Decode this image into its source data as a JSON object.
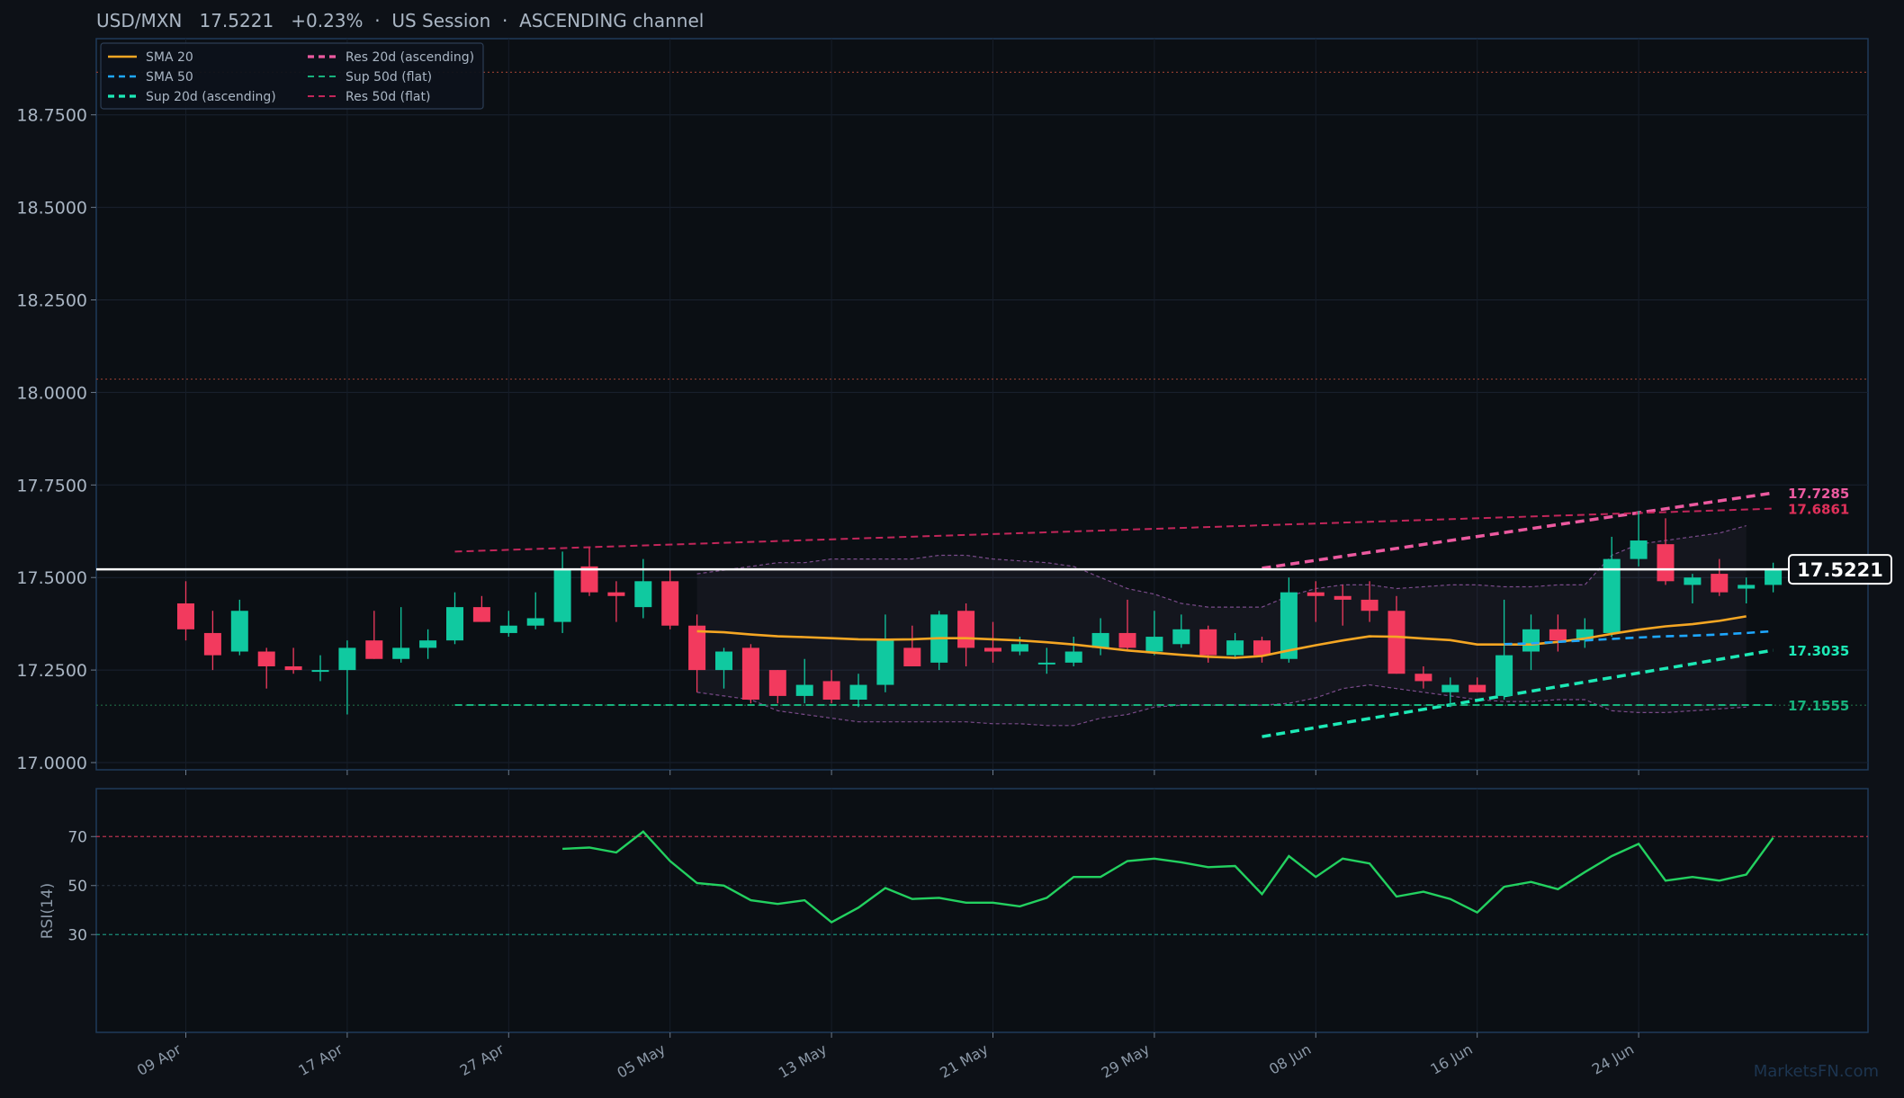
{
  "header": {
    "title": "USD/MXN   17.5221   +0.23%  ·  US Session  ·  ASCENDING channel"
  },
  "watermark": "MarketsFN.com",
  "colors": {
    "background": "#0d1117",
    "panel": "#0b0f14",
    "frame": "#1f3a5a",
    "up": "#10c9a0",
    "down": "#f23a5e",
    "sma20": "#f5a623",
    "sma50": "#1ea7ff",
    "sup20": "#1de9b6",
    "res20": "#ec5aa0",
    "sup50": "#17b27d",
    "res50": "#c2265a",
    "rsi": "#23d160",
    "band": "#7a4b8a",
    "last_price": "#ffffff"
  },
  "chart_data": [
    {
      "type": "candlestick",
      "title": "USD/MXN   17.5221   +0.23%  ·  US Session  ·  ASCENDING channel",
      "ylim": [
        16.98,
        18.89
      ],
      "y_ticks": [
        "17.0000",
        "17.2500",
        "17.5000",
        "17.7500",
        "18.0000",
        "18.2500",
        "18.5000",
        "18.7500"
      ],
      "y_tick_values": [
        17.0,
        17.25,
        17.5,
        17.75,
        18.0,
        18.25,
        18.5,
        18.75
      ],
      "x_ticks": [
        "09 Apr",
        "17 Apr",
        "27 Apr",
        "05 May",
        "13 May",
        "21 May",
        "29 May",
        "08 Jun",
        "16 Jun",
        "24 Jun"
      ],
      "x_tick_index": [
        0,
        6,
        12,
        18,
        24,
        30,
        36,
        42,
        48,
        54
      ],
      "candles": [
        {
          "o": 17.43,
          "h": 17.49,
          "l": 17.33,
          "c": 17.36
        },
        {
          "o": 17.35,
          "h": 17.41,
          "l": 17.25,
          "c": 17.29
        },
        {
          "o": 17.3,
          "h": 17.44,
          "l": 17.29,
          "c": 17.41
        },
        {
          "o": 17.3,
          "h": 17.31,
          "l": 17.2,
          "c": 17.26
        },
        {
          "o": 17.26,
          "h": 17.31,
          "l": 17.24,
          "c": 17.25
        },
        {
          "o": 17.25,
          "h": 17.29,
          "l": 17.22,
          "c": 17.25
        },
        {
          "o": 17.25,
          "h": 17.33,
          "l": 17.13,
          "c": 17.31
        },
        {
          "o": 17.33,
          "h": 17.41,
          "l": 17.28,
          "c": 17.28
        },
        {
          "o": 17.28,
          "h": 17.42,
          "l": 17.27,
          "c": 17.31
        },
        {
          "o": 17.31,
          "h": 17.36,
          "l": 17.28,
          "c": 17.33
        },
        {
          "o": 17.33,
          "h": 17.46,
          "l": 17.32,
          "c": 17.42
        },
        {
          "o": 17.42,
          "h": 17.45,
          "l": 17.38,
          "c": 17.38
        },
        {
          "o": 17.35,
          "h": 17.41,
          "l": 17.34,
          "c": 17.37
        },
        {
          "o": 17.37,
          "h": 17.46,
          "l": 17.36,
          "c": 17.39
        },
        {
          "o": 17.38,
          "h": 17.57,
          "l": 17.35,
          "c": 17.52
        },
        {
          "o": 17.53,
          "h": 17.58,
          "l": 17.45,
          "c": 17.46
        },
        {
          "o": 17.46,
          "h": 17.49,
          "l": 17.38,
          "c": 17.45
        },
        {
          "o": 17.42,
          "h": 17.55,
          "l": 17.39,
          "c": 17.49
        },
        {
          "o": 17.49,
          "h": 17.52,
          "l": 17.36,
          "c": 17.37
        },
        {
          "o": 17.37,
          "h": 17.4,
          "l": 17.19,
          "c": 17.25
        },
        {
          "o": 17.25,
          "h": 17.31,
          "l": 17.2,
          "c": 17.3
        },
        {
          "o": 17.31,
          "h": 17.32,
          "l": 17.16,
          "c": 17.17
        },
        {
          "o": 17.25,
          "h": 17.25,
          "l": 17.16,
          "c": 17.18
        },
        {
          "o": 17.18,
          "h": 17.28,
          "l": 17.16,
          "c": 17.21
        },
        {
          "o": 17.22,
          "h": 17.25,
          "l": 17.16,
          "c": 17.17
        },
        {
          "o": 17.17,
          "h": 17.24,
          "l": 17.15,
          "c": 17.21
        },
        {
          "o": 17.21,
          "h": 17.4,
          "l": 17.19,
          "c": 17.33
        },
        {
          "o": 17.31,
          "h": 17.37,
          "l": 17.26,
          "c": 17.26
        },
        {
          "o": 17.27,
          "h": 17.41,
          "l": 17.25,
          "c": 17.4
        },
        {
          "o": 17.41,
          "h": 17.43,
          "l": 17.26,
          "c": 17.31
        },
        {
          "o": 17.31,
          "h": 17.38,
          "l": 17.27,
          "c": 17.3
        },
        {
          "o": 17.3,
          "h": 17.34,
          "l": 17.29,
          "c": 17.32
        },
        {
          "o": 17.27,
          "h": 17.31,
          "l": 17.24,
          "c": 17.27
        },
        {
          "o": 17.27,
          "h": 17.34,
          "l": 17.26,
          "c": 17.3
        },
        {
          "o": 17.31,
          "h": 17.39,
          "l": 17.29,
          "c": 17.35
        },
        {
          "o": 17.35,
          "h": 17.44,
          "l": 17.3,
          "c": 17.31
        },
        {
          "o": 17.3,
          "h": 17.41,
          "l": 17.29,
          "c": 17.34
        },
        {
          "o": 17.32,
          "h": 17.4,
          "l": 17.31,
          "c": 17.36
        },
        {
          "o": 17.36,
          "h": 17.37,
          "l": 17.27,
          "c": 17.29
        },
        {
          "o": 17.29,
          "h": 17.35,
          "l": 17.28,
          "c": 17.33
        },
        {
          "o": 17.33,
          "h": 17.34,
          "l": 17.27,
          "c": 17.29
        },
        {
          "o": 17.28,
          "h": 17.5,
          "l": 17.27,
          "c": 17.46
        },
        {
          "o": 17.46,
          "h": 17.49,
          "l": 17.38,
          "c": 17.45
        },
        {
          "o": 17.45,
          "h": 17.48,
          "l": 17.37,
          "c": 17.44
        },
        {
          "o": 17.44,
          "h": 17.49,
          "l": 17.38,
          "c": 17.41
        },
        {
          "o": 17.41,
          "h": 17.45,
          "l": 17.24,
          "c": 17.24
        },
        {
          "o": 17.24,
          "h": 17.26,
          "l": 17.2,
          "c": 17.22
        },
        {
          "o": 17.19,
          "h": 17.23,
          "l": 17.15,
          "c": 17.21
        },
        {
          "o": 17.21,
          "h": 17.23,
          "l": 17.19,
          "c": 17.19
        },
        {
          "o": 17.18,
          "h": 17.44,
          "l": 17.17,
          "c": 17.29
        },
        {
          "o": 17.3,
          "h": 17.4,
          "l": 17.25,
          "c": 17.36
        },
        {
          "o": 17.36,
          "h": 17.4,
          "l": 17.3,
          "c": 17.33
        },
        {
          "o": 17.33,
          "h": 17.39,
          "l": 17.31,
          "c": 17.36
        },
        {
          "o": 17.35,
          "h": 17.61,
          "l": 17.34,
          "c": 17.55
        },
        {
          "o": 17.55,
          "h": 17.68,
          "l": 17.53,
          "c": 17.6
        },
        {
          "o": 17.59,
          "h": 17.66,
          "l": 17.48,
          "c": 17.49
        },
        {
          "o": 17.48,
          "h": 17.51,
          "l": 17.43,
          "c": 17.5
        },
        {
          "o": 17.51,
          "h": 17.55,
          "l": 17.45,
          "c": 17.46
        },
        {
          "o": 17.47,
          "h": 17.5,
          "l": 17.43,
          "c": 17.48
        },
        {
          "o": 17.48,
          "h": 17.54,
          "l": 17.46,
          "c": 17.52
        }
      ],
      "series": [
        {
          "name": "SMA 20",
          "start_index": 19,
          "values": [
            17.355,
            17.352,
            17.346,
            17.341,
            17.339,
            17.336,
            17.333,
            17.332,
            17.333,
            17.336,
            17.336,
            17.333,
            17.33,
            17.325,
            17.319,
            17.311,
            17.303,
            17.297,
            17.291,
            17.286,
            17.283,
            17.288,
            17.303,
            17.317,
            17.33,
            17.341,
            17.34,
            17.335,
            17.331,
            17.319,
            17.319,
            17.319,
            17.326,
            17.335,
            17.348,
            17.359,
            17.368,
            17.374,
            17.383,
            17.395
          ]
        },
        {
          "name": "SMA 50",
          "start_index": 49,
          "values": [
            17.32,
            17.322,
            17.326,
            17.33,
            17.334,
            17.338,
            17.341,
            17.343,
            17.346,
            17.35,
            17.355
          ]
        },
        {
          "name": "Sup 20d (ascending)",
          "from": [
            40,
            17.07
          ],
          "to": [
            59,
            17.3035
          ]
        },
        {
          "name": "Res 20d (ascending)",
          "from": [
            40,
            17.525
          ],
          "to": [
            59,
            17.7285
          ]
        },
        {
          "name": "Sup 50d (flat)",
          "from": [
            10,
            17.1555
          ],
          "to": [
            59,
            17.1555
          ]
        },
        {
          "name": "Res 50d (flat)",
          "from": [
            10,
            17.57
          ],
          "to": [
            59,
            17.6861
          ]
        }
      ],
      "bollinger": {
        "start_index": 19,
        "upper": [
          17.51,
          17.52,
          17.53,
          17.54,
          17.54,
          17.55,
          17.55,
          17.55,
          17.55,
          17.56,
          17.56,
          17.55,
          17.545,
          17.54,
          17.53,
          17.5,
          17.47,
          17.455,
          17.43,
          17.42,
          17.42,
          17.42,
          17.45,
          17.47,
          17.48,
          17.48,
          17.47,
          17.475,
          17.48,
          17.48,
          17.475,
          17.475,
          17.48,
          17.48,
          17.56,
          17.59,
          17.6,
          17.61,
          17.62,
          17.64
        ],
        "lower": [
          17.19,
          17.18,
          17.17,
          17.14,
          17.13,
          17.12,
          17.11,
          17.11,
          17.11,
          17.11,
          17.11,
          17.105,
          17.105,
          17.1,
          17.1,
          17.12,
          17.13,
          17.15,
          17.155,
          17.155,
          17.155,
          17.155,
          17.16,
          17.175,
          17.2,
          17.21,
          17.2,
          17.19,
          17.18,
          17.17,
          17.165,
          17.165,
          17.17,
          17.17,
          17.14,
          17.135,
          17.135,
          17.14,
          17.145,
          17.15
        ]
      },
      "horizontal_levels": [
        18.865,
        18.036
      ],
      "zone_levels": {
        "upper": 17.52,
        "lower": 17.155
      },
      "last_price": "17.5221",
      "last_price_value": 17.5221,
      "right_labels": [
        {
          "text": "17.7285",
          "value": 17.7285,
          "color": "#ec5aa0"
        },
        {
          "text": "17.6861",
          "value": 17.6861,
          "color": "#e0305a"
        },
        {
          "text": "17.3035",
          "value": 17.3035,
          "color": "#1de9b6"
        },
        {
          "text": "17.1555",
          "value": 17.1555,
          "color": "#17b27d"
        }
      ],
      "legend": {
        "placement": "top-left",
        "entries": [
          "SMA 20",
          "SMA 50",
          "Sup 20d (ascending)",
          "Res 20d (ascending)",
          "Sup 50d (flat)",
          "Res 50d (flat)"
        ]
      },
      "grid": true
    },
    {
      "type": "line",
      "ylabel": "RSI(14)",
      "ylim": [
        0,
        100
      ],
      "y_ticks": [
        "30",
        "50",
        "70"
      ],
      "y_tick_values": [
        30,
        50,
        70
      ],
      "start_index": 14,
      "series": [
        {
          "name": "RSI(14)",
          "values": [
            65,
            65.5,
            63.5,
            72,
            60,
            51,
            50,
            44,
            42.5,
            44,
            35,
            41,
            49,
            44.5,
            45,
            43,
            43,
            41.5,
            45,
            53.5,
            53.5,
            60,
            61,
            59.5,
            57.5,
            58,
            46.5,
            62,
            53.5,
            61,
            59,
            45.5,
            47.5,
            44.5,
            39,
            49.5,
            51.5,
            48.5,
            55.5,
            62,
            67,
            52,
            53.5,
            52,
            54.5,
            69.5
          ]
        }
      ],
      "overbought": 70,
      "oversold": 30
    }
  ]
}
